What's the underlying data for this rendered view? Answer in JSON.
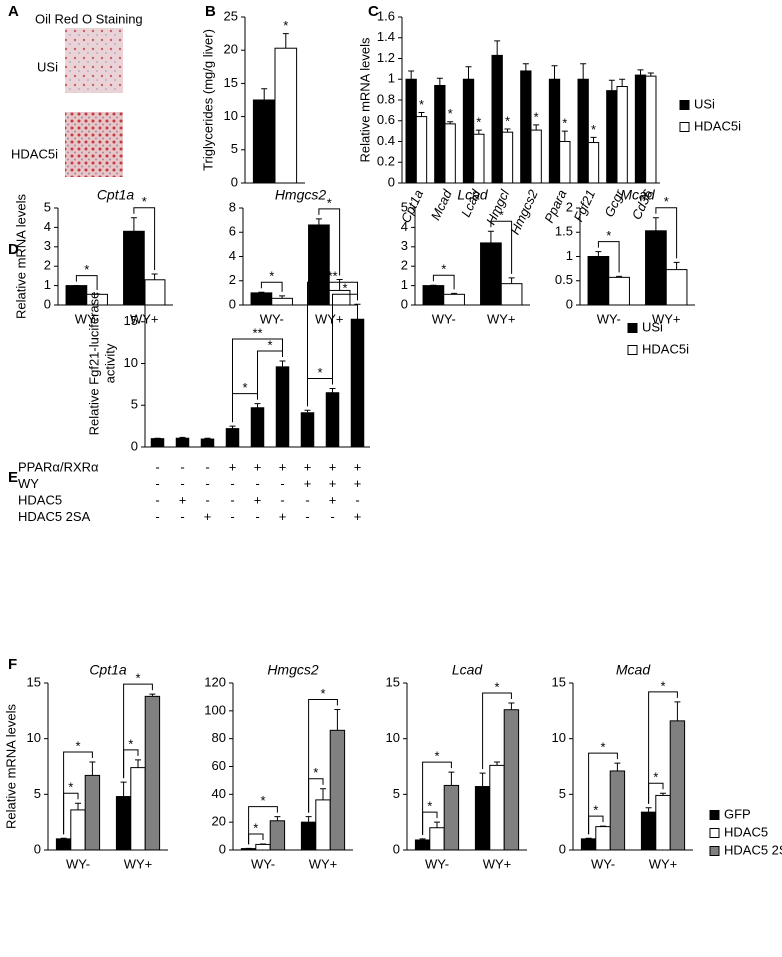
{
  "panel_a": {
    "label": "A",
    "title": "Oil Red O Staining",
    "rows": [
      "USi",
      "HDAC5i"
    ]
  },
  "chart_data": [
    {
      "type": "bar",
      "panel": "B",
      "ylabel": "Triglycerides (mg/g liver)",
      "categories": [
        null
      ],
      "series": [
        {
          "color": "#000000",
          "values": [
            12.5
          ],
          "errors": [
            1.7
          ]
        },
        {
          "color": "#ffffff",
          "values": [
            20.3
          ],
          "errors": [
            2.2
          ],
          "annotations": [
            "*"
          ]
        }
      ],
      "ylim": [
        0,
        25
      ],
      "yticks": [
        0,
        5,
        10,
        15,
        20,
        25
      ]
    },
    {
      "type": "bar",
      "panel": "C",
      "ylabel": "Relative mRNA levels",
      "categories": [
        "Cpt1a",
        "Mcad",
        "Lcad",
        "Hmgcl",
        "Hmgcs2",
        "Ppara",
        "Fgf21",
        "Gcgr",
        "Cd36"
      ],
      "rotated_labels": true,
      "italic_labels": true,
      "series": [
        {
          "name": "USi",
          "color": "#000000",
          "values": [
            1,
            0.94,
            1,
            1.23,
            1.08,
            1,
            1,
            0.89,
            1.04
          ],
          "errors": [
            0.08,
            0.07,
            0.12,
            0.14,
            0.07,
            0.13,
            0.15,
            0.1,
            0.05
          ]
        },
        {
          "name": "HDAC5i",
          "color": "#ffffff",
          "values": [
            0.64,
            0.57,
            0.47,
            0.49,
            0.51,
            0.4,
            0.39,
            0.93,
            1.03
          ],
          "errors": [
            0.04,
            0.02,
            0.04,
            0.03,
            0.05,
            0.1,
            0.05,
            0.07,
            0.03
          ],
          "annotations": [
            "*",
            "*",
            "*",
            "*",
            "*",
            "*",
            "*",
            null,
            null
          ]
        }
      ],
      "ylim": [
        0,
        1.6
      ],
      "yticks": [
        0,
        0.2,
        0.4,
        0.6,
        0.8,
        1,
        1.2,
        1.4,
        1.6
      ],
      "legend": "right"
    },
    {
      "type": "bar",
      "panel": "D",
      "title": "Cpt1a",
      "ylabel": "Relative mRNA levels",
      "categories": [
        "WY-",
        "WY+"
      ],
      "series": [
        {
          "color": "#000000",
          "values": [
            1,
            3.8
          ],
          "errors": [
            0,
            0.7
          ]
        },
        {
          "color": "#ffffff",
          "values": [
            0.55,
            1.3
          ],
          "errors": [
            0.02,
            0.3
          ]
        }
      ],
      "ylim": [
        0,
        5
      ],
      "yticks": [
        0,
        1,
        2,
        3,
        4,
        5
      ],
      "brackets": [
        {
          "from": [
            0,
            0
          ],
          "to": [
            0,
            1
          ],
          "label": "*"
        },
        {
          "from": [
            1,
            0
          ],
          "to": [
            1,
            1
          ],
          "label": "*"
        }
      ]
    },
    {
      "type": "bar",
      "title": "Hmgcs2",
      "categories": [
        "WY-",
        "WY+"
      ],
      "series": [
        {
          "color": "#000000",
          "values": [
            1,
            6.6
          ],
          "errors": [
            0.05,
            0.5
          ]
        },
        {
          "color": "#ffffff",
          "values": [
            0.55,
            1.2
          ],
          "errors": [
            0.2,
            0.9
          ]
        }
      ],
      "ylim": [
        0,
        8
      ],
      "yticks": [
        0,
        2,
        4,
        6,
        8
      ],
      "brackets": [
        {
          "from": [
            0,
            0
          ],
          "to": [
            0,
            1
          ],
          "label": "*"
        },
        {
          "from": [
            1,
            0
          ],
          "to": [
            1,
            1
          ],
          "label": "*"
        }
      ]
    },
    {
      "type": "bar",
      "title": "Lcad",
      "categories": [
        "WY-",
        "WY+"
      ],
      "series": [
        {
          "color": "#000000",
          "values": [
            1,
            3.2
          ],
          "errors": [
            0.02,
            0.6
          ]
        },
        {
          "color": "#ffffff",
          "values": [
            0.55,
            1.1
          ],
          "errors": [
            0.05,
            0.3
          ]
        }
      ],
      "ylim": [
        0,
        5
      ],
      "yticks": [
        0,
        1,
        2,
        3,
        4,
        5
      ],
      "brackets": [
        {
          "from": [
            0,
            0
          ],
          "to": [
            0,
            1
          ],
          "label": "*"
        },
        {
          "from": [
            1,
            0
          ],
          "to": [
            1,
            1
          ],
          "label": "*"
        }
      ]
    },
    {
      "type": "bar",
      "title": "Mcad",
      "categories": [
        "WY-",
        "WY+"
      ],
      "series": [
        {
          "name": "USi",
          "color": "#000000",
          "values": [
            1,
            1.53
          ],
          "errors": [
            0.1,
            0.27
          ]
        },
        {
          "name": "HDAC5i",
          "color": "#ffffff",
          "values": [
            0.57,
            0.73
          ],
          "errors": [
            0.02,
            0.15
          ]
        }
      ],
      "ylim": [
        0,
        2
      ],
      "yticks": [
        0,
        0.5,
        1,
        1.5,
        2
      ],
      "legend": "right",
      "brackets": [
        {
          "from": [
            0,
            0
          ],
          "to": [
            0,
            1
          ],
          "label": "*"
        },
        {
          "from": [
            1,
            0
          ],
          "to": [
            1,
            1
          ],
          "label": "*"
        }
      ]
    },
    {
      "type": "bar",
      "panel": "E",
      "ylabel": [
        "Relative Fgf21-luciferase",
        "activity"
      ],
      "series": [
        {
          "color": "#000000",
          "values": [
            1,
            1.05,
            0.95,
            2.2,
            4.7,
            9.6,
            4.1,
            6.5,
            15.3
          ],
          "errors": [
            0.05,
            0.1,
            0.1,
            0.3,
            0.5,
            0.7,
            0.3,
            0.5,
            1.8
          ]
        }
      ],
      "ylim": [
        0,
        20
      ],
      "yticks": [
        0,
        5,
        10,
        15,
        20
      ],
      "brackets": [
        {
          "from": [
            3,
            0
          ],
          "to": [
            4,
            0
          ],
          "label": "*"
        },
        {
          "from": [
            4,
            0
          ],
          "to": [
            5,
            0
          ],
          "label": "*"
        },
        {
          "from": [
            3,
            0
          ],
          "to": [
            5,
            0
          ],
          "label": "**"
        },
        {
          "from": [
            6,
            0
          ],
          "to": [
            7,
            0
          ],
          "label": "*"
        },
        {
          "from": [
            7,
            0
          ],
          "to": [
            8,
            0
          ],
          "label": "*"
        },
        {
          "from": [
            6,
            0
          ],
          "to": [
            8,
            0
          ],
          "label": "**"
        }
      ],
      "conditions": [
        {
          "label": "PPARα/RXRα",
          "marks": [
            "-",
            "-",
            "-",
            "+",
            "+",
            "+",
            "+",
            "+",
            "+"
          ]
        },
        {
          "label": "WY",
          "marks": [
            "-",
            "-",
            "-",
            "-",
            "-",
            "-",
            "+",
            "+",
            "+"
          ]
        },
        {
          "label": "HDAC5",
          "marks": [
            "-",
            "+",
            "-",
            "-",
            "+",
            "-",
            "-",
            "+",
            "-"
          ]
        },
        {
          "label": "HDAC5 2SA",
          "marks": [
            "-",
            "-",
            "+",
            "-",
            "-",
            "+",
            "-",
            "-",
            "+"
          ]
        }
      ]
    },
    {
      "type": "bar",
      "panel": "F",
      "title": "Cpt1a",
      "ylabel": "Relative mRNA levels",
      "categories": [
        "WY-",
        "WY+"
      ],
      "series": [
        {
          "color": "#000000",
          "values": [
            1,
            4.8
          ],
          "errors": [
            0.05,
            1.3
          ]
        },
        {
          "color": "#ffffff",
          "values": [
            3.6,
            7.4
          ],
          "errors": [
            0.6,
            0.7
          ]
        },
        {
          "color": "#808080",
          "values": [
            6.7,
            13.8
          ],
          "errors": [
            1.2,
            0.2
          ]
        }
      ],
      "ylim": [
        0,
        15
      ],
      "yticks": [
        0,
        5,
        10,
        15
      ],
      "brackets": [
        {
          "from": [
            0,
            0
          ],
          "to": [
            0,
            1
          ],
          "label": "*"
        },
        {
          "from": [
            0,
            0
          ],
          "to": [
            0,
            2
          ],
          "label": "*"
        },
        {
          "from": [
            1,
            0
          ],
          "to": [
            1,
            1
          ],
          "label": "*"
        },
        {
          "from": [
            1,
            0
          ],
          "to": [
            1,
            2
          ],
          "label": "*"
        }
      ]
    },
    {
      "type": "bar",
      "title": "Hmgcs2",
      "categories": [
        "WY-",
        "WY+"
      ],
      "series": [
        {
          "color": "#000000",
          "values": [
            1,
            20
          ],
          "errors": [
            0.2,
            4
          ]
        },
        {
          "color": "#ffffff",
          "values": [
            4,
            36
          ],
          "errors": [
            0.3,
            8
          ]
        },
        {
          "color": "#808080",
          "values": [
            21,
            86
          ],
          "errors": [
            3,
            15
          ]
        }
      ],
      "ylim": [
        0,
        120
      ],
      "yticks": [
        0,
        20,
        40,
        60,
        80,
        100,
        120
      ],
      "brackets": [
        {
          "from": [
            0,
            0
          ],
          "to": [
            0,
            1
          ],
          "label": "*"
        },
        {
          "from": [
            0,
            0
          ],
          "to": [
            0,
            2
          ],
          "label": "*"
        },
        {
          "from": [
            1,
            0
          ],
          "to": [
            1,
            1
          ],
          "label": "*"
        },
        {
          "from": [
            1,
            0
          ],
          "to": [
            1,
            2
          ],
          "label": "*"
        }
      ]
    },
    {
      "type": "bar",
      "title": "Lcad",
      "categories": [
        "WY-",
        "WY+"
      ],
      "series": [
        {
          "color": "#000000",
          "values": [
            0.9,
            5.7
          ],
          "errors": [
            0.1,
            1.2
          ]
        },
        {
          "color": "#ffffff",
          "values": [
            2,
            7.6
          ],
          "errors": [
            0.5,
            0.3
          ]
        },
        {
          "color": "#808080",
          "values": [
            5.8,
            12.6
          ],
          "errors": [
            1.2,
            0.6
          ]
        }
      ],
      "ylim": [
        0,
        15
      ],
      "yticks": [
        0,
        5,
        10,
        15
      ],
      "brackets": [
        {
          "from": [
            0,
            0
          ],
          "to": [
            0,
            1
          ],
          "label": "*"
        },
        {
          "from": [
            0,
            0
          ],
          "to": [
            0,
            2
          ],
          "label": "*"
        },
        {
          "from": [
            1,
            0
          ],
          "to": [
            1,
            2
          ],
          "label": "*"
        }
      ]
    },
    {
      "type": "bar",
      "title": "Mcad",
      "categories": [
        "WY-",
        "WY+"
      ],
      "series": [
        {
          "name": "GFP",
          "color": "#000000",
          "values": [
            1,
            3.4
          ],
          "errors": [
            0.05,
            0.4
          ]
        },
        {
          "name": "HDAC5",
          "color": "#ffffff",
          "values": [
            2.1,
            4.9
          ],
          "errors": [
            0.05,
            0.2
          ]
        },
        {
          "name": "HDAC5 2SA",
          "color": "#808080",
          "values": [
            7.1,
            11.6
          ],
          "errors": [
            0.7,
            1.7
          ]
        }
      ],
      "ylim": [
        0,
        15
      ],
      "yticks": [
        0,
        5,
        10,
        15
      ],
      "legend": "right",
      "brackets": [
        {
          "from": [
            0,
            0
          ],
          "to": [
            0,
            1
          ],
          "label": "*"
        },
        {
          "from": [
            0,
            0
          ],
          "to": [
            0,
            2
          ],
          "label": "*"
        },
        {
          "from": [
            1,
            0
          ],
          "to": [
            1,
            1
          ],
          "label": "*"
        },
        {
          "from": [
            1,
            0
          ],
          "to": [
            1,
            2
          ],
          "label": "*"
        }
      ]
    }
  ]
}
